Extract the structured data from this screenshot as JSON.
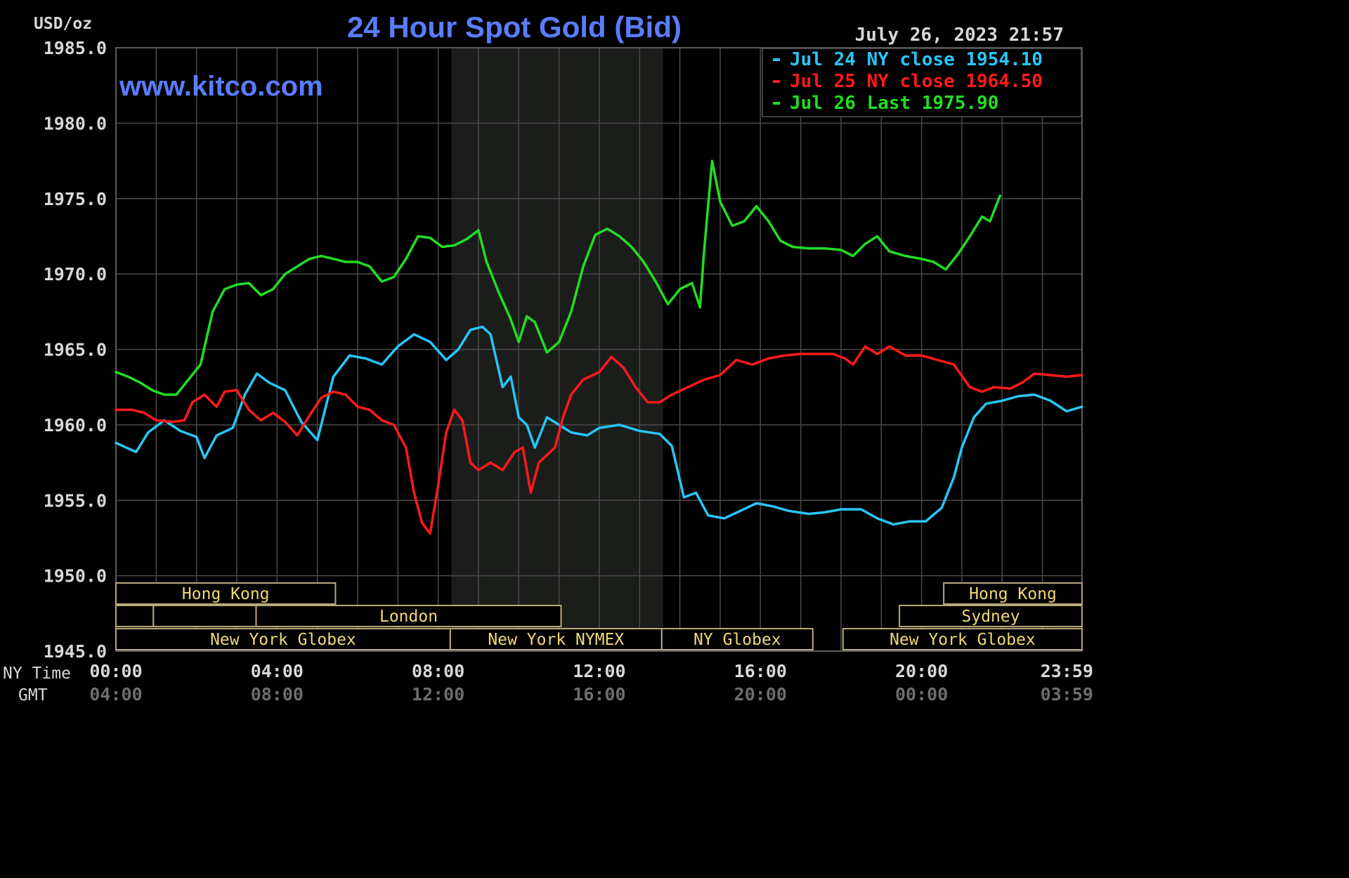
{
  "chart_data": {
    "type": "line",
    "title": "24 Hour Spot Gold (Bid)",
    "unit_label": "USD/oz",
    "watermark": "www.kitco.com",
    "timestamp": "July 26, 2023 21:57",
    "ylim": [
      1945,
      1985
    ],
    "y_ticks": [
      "1985.0",
      "1980.0",
      "1975.0",
      "1970.0",
      "1965.0",
      "1960.0",
      "1955.0",
      "1950.0",
      "1945.0"
    ],
    "x_axis_title": "NY Time",
    "x_axis_title_2": "GMT",
    "x_ticks_ny": [
      "00:00",
      "04:00",
      "08:00",
      "12:00",
      "16:00",
      "20:00",
      "23:59"
    ],
    "x_ticks_gmt": [
      "04:00",
      "08:00",
      "12:00",
      "16:00",
      "20:00",
      "00:00",
      "03:59"
    ],
    "x_tick_hours": [
      0,
      4,
      8,
      12,
      16,
      20,
      23.983
    ],
    "grid": true,
    "legend_position": "top-right",
    "nymex_shading_hours": [
      8.33,
      13.58
    ],
    "series": [
      {
        "name": "Jul 24 NY close 1954.10",
        "color": "#29c5f6",
        "points": [
          [
            0,
            1958.8
          ],
          [
            0.5,
            1958.2
          ],
          [
            0.8,
            1959.5
          ],
          [
            1.2,
            1960.3
          ],
          [
            1.6,
            1959.6
          ],
          [
            2.0,
            1959.2
          ],
          [
            2.2,
            1957.8
          ],
          [
            2.5,
            1959.3
          ],
          [
            2.9,
            1959.8
          ],
          [
            3.2,
            1962.0
          ],
          [
            3.5,
            1963.4
          ],
          [
            3.8,
            1962.8
          ],
          [
            4.2,
            1962.3
          ],
          [
            4.6,
            1960.2
          ],
          [
            5.0,
            1959.0
          ],
          [
            5.4,
            1963.2
          ],
          [
            5.8,
            1964.6
          ],
          [
            6.2,
            1964.4
          ],
          [
            6.6,
            1964.0
          ],
          [
            7.0,
            1965.2
          ],
          [
            7.4,
            1966.0
          ],
          [
            7.8,
            1965.5
          ],
          [
            8.2,
            1964.3
          ],
          [
            8.5,
            1965.0
          ],
          [
            8.8,
            1966.3
          ],
          [
            9.1,
            1966.5
          ],
          [
            9.3,
            1966.0
          ],
          [
            9.6,
            1962.5
          ],
          [
            9.8,
            1963.2
          ],
          [
            10.0,
            1960.5
          ],
          [
            10.2,
            1960.0
          ],
          [
            10.4,
            1958.5
          ],
          [
            10.7,
            1960.5
          ],
          [
            11.0,
            1960.0
          ],
          [
            11.3,
            1959.5
          ],
          [
            11.7,
            1959.3
          ],
          [
            12.0,
            1959.8
          ],
          [
            12.5,
            1960.0
          ],
          [
            13.0,
            1959.6
          ],
          [
            13.5,
            1959.4
          ],
          [
            13.8,
            1958.6
          ],
          [
            14.1,
            1955.2
          ],
          [
            14.4,
            1955.5
          ],
          [
            14.7,
            1954.0
          ],
          [
            15.1,
            1953.8
          ],
          [
            15.5,
            1954.3
          ],
          [
            15.9,
            1954.8
          ],
          [
            16.3,
            1954.6
          ],
          [
            16.7,
            1954.3
          ],
          [
            17.2,
            1954.1
          ],
          [
            17.6,
            1954.2
          ],
          [
            18.0,
            1954.4
          ],
          [
            18.5,
            1954.4
          ],
          [
            18.9,
            1953.8
          ],
          [
            19.3,
            1953.4
          ],
          [
            19.7,
            1953.6
          ],
          [
            20.1,
            1953.6
          ],
          [
            20.5,
            1954.5
          ],
          [
            20.8,
            1956.5
          ],
          [
            21.0,
            1958.5
          ],
          [
            21.3,
            1960.5
          ],
          [
            21.6,
            1961.4
          ],
          [
            22.0,
            1961.6
          ],
          [
            22.4,
            1961.9
          ],
          [
            22.8,
            1962.0
          ],
          [
            23.2,
            1961.6
          ],
          [
            23.6,
            1960.9
          ],
          [
            23.983,
            1961.2
          ]
        ]
      },
      {
        "name": "Jul 25 NY close 1964.50",
        "color": "#ff1a1a",
        "points": [
          [
            0,
            1961.0
          ],
          [
            0.4,
            1961.0
          ],
          [
            0.7,
            1960.8
          ],
          [
            1.0,
            1960.3
          ],
          [
            1.4,
            1960.2
          ],
          [
            1.7,
            1960.3
          ],
          [
            1.9,
            1961.5
          ],
          [
            2.2,
            1962.0
          ],
          [
            2.5,
            1961.2
          ],
          [
            2.7,
            1962.2
          ],
          [
            3.0,
            1962.3
          ],
          [
            3.3,
            1961.0
          ],
          [
            3.6,
            1960.3
          ],
          [
            3.9,
            1960.8
          ],
          [
            4.2,
            1960.2
          ],
          [
            4.5,
            1959.3
          ],
          [
            4.8,
            1960.6
          ],
          [
            5.1,
            1961.8
          ],
          [
            5.4,
            1962.2
          ],
          [
            5.7,
            1962.0
          ],
          [
            6.0,
            1961.2
          ],
          [
            6.3,
            1961.0
          ],
          [
            6.6,
            1960.3
          ],
          [
            6.9,
            1960.0
          ],
          [
            7.2,
            1958.5
          ],
          [
            7.4,
            1955.5
          ],
          [
            7.6,
            1953.5
          ],
          [
            7.8,
            1952.8
          ],
          [
            8.0,
            1956.0
          ],
          [
            8.2,
            1959.5
          ],
          [
            8.4,
            1961.0
          ],
          [
            8.6,
            1960.3
          ],
          [
            8.8,
            1957.5
          ],
          [
            9.0,
            1957.0
          ],
          [
            9.3,
            1957.5
          ],
          [
            9.6,
            1957.0
          ],
          [
            9.9,
            1958.2
          ],
          [
            10.1,
            1958.5
          ],
          [
            10.3,
            1955.5
          ],
          [
            10.5,
            1957.5
          ],
          [
            10.7,
            1958.0
          ],
          [
            10.9,
            1958.5
          ],
          [
            11.1,
            1960.5
          ],
          [
            11.3,
            1962.0
          ],
          [
            11.6,
            1963.0
          ],
          [
            12.0,
            1963.5
          ],
          [
            12.3,
            1964.5
          ],
          [
            12.6,
            1963.8
          ],
          [
            12.9,
            1962.5
          ],
          [
            13.2,
            1961.5
          ],
          [
            13.5,
            1961.5
          ],
          [
            13.8,
            1962.0
          ],
          [
            14.2,
            1962.5
          ],
          [
            14.6,
            1963.0
          ],
          [
            15.0,
            1963.3
          ],
          [
            15.4,
            1964.3
          ],
          [
            15.8,
            1964.0
          ],
          [
            16.2,
            1964.4
          ],
          [
            16.6,
            1964.6
          ],
          [
            17.0,
            1964.7
          ],
          [
            17.4,
            1964.7
          ],
          [
            17.8,
            1964.7
          ],
          [
            18.1,
            1964.4
          ],
          [
            18.3,
            1964.0
          ],
          [
            18.6,
            1965.2
          ],
          [
            18.9,
            1964.7
          ],
          [
            19.2,
            1965.2
          ],
          [
            19.6,
            1964.6
          ],
          [
            20.0,
            1964.6
          ],
          [
            20.4,
            1964.3
          ],
          [
            20.8,
            1964.0
          ],
          [
            21.2,
            1962.5
          ],
          [
            21.5,
            1962.2
          ],
          [
            21.8,
            1962.5
          ],
          [
            22.2,
            1962.4
          ],
          [
            22.5,
            1962.8
          ],
          [
            22.8,
            1963.4
          ],
          [
            23.2,
            1963.3
          ],
          [
            23.6,
            1963.2
          ],
          [
            23.983,
            1963.3
          ]
        ]
      },
      {
        "name": "Jul 26 Last 1975.90",
        "color": "#22dd22",
        "points": [
          [
            0,
            1963.5
          ],
          [
            0.3,
            1963.2
          ],
          [
            0.6,
            1962.8
          ],
          [
            0.9,
            1962.3
          ],
          [
            1.2,
            1962.0
          ],
          [
            1.5,
            1962.0
          ],
          [
            1.8,
            1963.0
          ],
          [
            2.1,
            1964.0
          ],
          [
            2.4,
            1967.5
          ],
          [
            2.7,
            1969.0
          ],
          [
            3.0,
            1969.3
          ],
          [
            3.3,
            1969.4
          ],
          [
            3.6,
            1968.6
          ],
          [
            3.9,
            1969.0
          ],
          [
            4.2,
            1970.0
          ],
          [
            4.5,
            1970.5
          ],
          [
            4.8,
            1971.0
          ],
          [
            5.1,
            1971.2
          ],
          [
            5.4,
            1971.0
          ],
          [
            5.7,
            1970.8
          ],
          [
            6.0,
            1970.8
          ],
          [
            6.3,
            1970.5
          ],
          [
            6.6,
            1969.5
          ],
          [
            6.9,
            1969.8
          ],
          [
            7.2,
            1971.0
          ],
          [
            7.5,
            1972.5
          ],
          [
            7.8,
            1972.4
          ],
          [
            8.1,
            1971.8
          ],
          [
            8.4,
            1971.9
          ],
          [
            8.7,
            1972.3
          ],
          [
            9.0,
            1972.9
          ],
          [
            9.2,
            1970.8
          ],
          [
            9.5,
            1968.8
          ],
          [
            9.8,
            1967.0
          ],
          [
            10.0,
            1965.5
          ],
          [
            10.2,
            1967.2
          ],
          [
            10.4,
            1966.8
          ],
          [
            10.7,
            1964.8
          ],
          [
            11.0,
            1965.5
          ],
          [
            11.3,
            1967.5
          ],
          [
            11.6,
            1970.5
          ],
          [
            11.9,
            1972.6
          ],
          [
            12.2,
            1973.0
          ],
          [
            12.5,
            1972.5
          ],
          [
            12.8,
            1971.8
          ],
          [
            13.1,
            1970.8
          ],
          [
            13.4,
            1969.5
          ],
          [
            13.7,
            1968.0
          ],
          [
            14.0,
            1969.0
          ],
          [
            14.3,
            1969.4
          ],
          [
            14.5,
            1967.8
          ],
          [
            14.6,
            1971.5
          ],
          [
            14.8,
            1977.5
          ],
          [
            15.0,
            1974.8
          ],
          [
            15.3,
            1973.2
          ],
          [
            15.6,
            1973.5
          ],
          [
            15.9,
            1974.5
          ],
          [
            16.2,
            1973.5
          ],
          [
            16.5,
            1972.2
          ],
          [
            16.8,
            1971.8
          ],
          [
            17.2,
            1971.7
          ],
          [
            17.6,
            1971.7
          ],
          [
            18.0,
            1971.6
          ],
          [
            18.3,
            1971.2
          ],
          [
            18.6,
            1972.0
          ],
          [
            18.9,
            1972.5
          ],
          [
            19.2,
            1971.5
          ],
          [
            19.6,
            1971.2
          ],
          [
            20.0,
            1971.0
          ],
          [
            20.3,
            1970.8
          ],
          [
            20.6,
            1970.3
          ],
          [
            20.9,
            1971.3
          ],
          [
            21.2,
            1972.5
          ],
          [
            21.5,
            1973.8
          ],
          [
            21.7,
            1973.5
          ],
          [
            21.95,
            1975.2
          ]
        ]
      }
    ],
    "sessions": [
      {
        "label": "Hong Kong",
        "row": 0,
        "start": 0,
        "end": 5.45
      },
      {
        "label": "",
        "row": 1,
        "start": 0,
        "end": 0.93
      },
      {
        "label": "",
        "row": 1,
        "start": 0.93,
        "end": 3.48
      },
      {
        "label": "London",
        "row": 1,
        "start": 3.48,
        "end": 11.05
      },
      {
        "label": "New York Globex",
        "row": 2,
        "start": 0,
        "end": 8.3
      },
      {
        "label": "New York NYMEX",
        "row": 2,
        "start": 8.3,
        "end": 13.55
      },
      {
        "label": "NY Globex",
        "row": 2,
        "start": 13.55,
        "end": 17.3
      },
      {
        "label": "Hong Kong",
        "row": 0,
        "start": 20.55,
        "end": 23.983
      },
      {
        "label": "Sydney",
        "row": 1,
        "start": 19.45,
        "end": 23.983
      },
      {
        "label": "New York Globex",
        "row": 2,
        "start": 18.05,
        "end": 23.983
      }
    ]
  }
}
